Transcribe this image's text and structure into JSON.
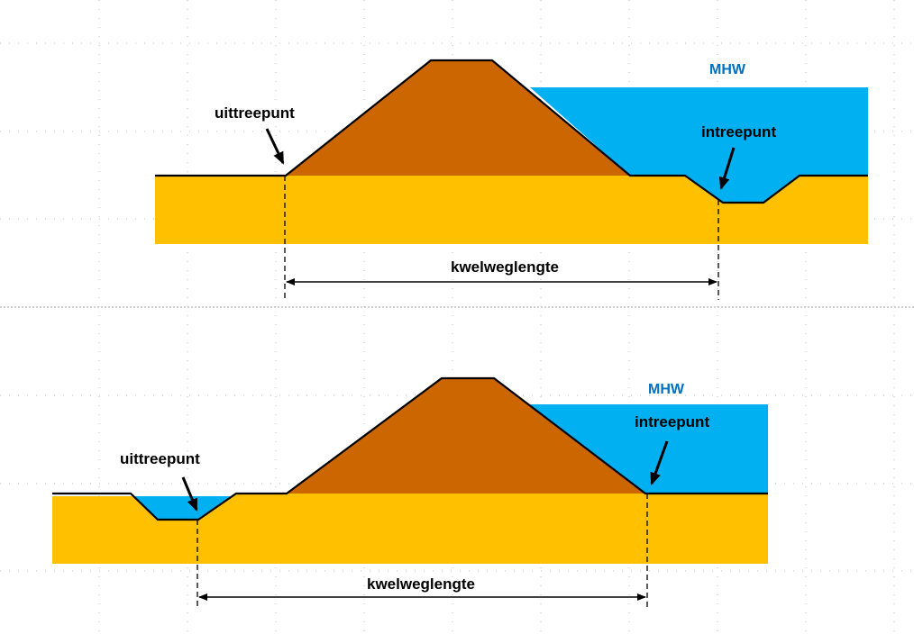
{
  "colors": {
    "dike": "#CC6600",
    "soil": "#FFC000",
    "water": "#00B0F0",
    "mhw_text": "#0070C0",
    "outline": "#000000",
    "grid": "#BFBFBF"
  },
  "top": {
    "mhw": "MHW",
    "uittreepunt": "uittreepunt",
    "intreepunt": "intreepunt",
    "kwelweglengte": "kwelweglengte"
  },
  "bottom": {
    "mhw": "MHW",
    "uittreepunt": "uittreepunt",
    "intreepunt": "intreepunt",
    "kwelweglengte": "kwelweglengte"
  }
}
